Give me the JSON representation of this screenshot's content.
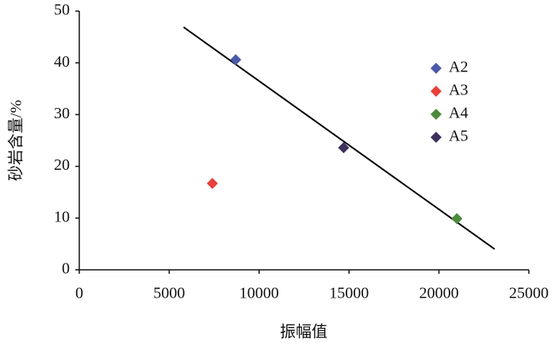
{
  "chart_data": {
    "type": "scatter",
    "x_label": "振幅值",
    "y_label": "砂岩含量/%",
    "xlim": [
      0,
      25000
    ],
    "xticks": [
      0,
      5000,
      10000,
      15000,
      20000,
      25000
    ],
    "ylim": [
      0,
      50
    ],
    "yticks": [
      0,
      10,
      20,
      30,
      40,
      50
    ],
    "series": [
      {
        "name": "A2",
        "color": "#4a5aa8",
        "x": [
          8700
        ],
        "values": [
          40.6
        ]
      },
      {
        "name": "A3",
        "color": "#e8403a",
        "x": [
          7400
        ],
        "values": [
          16.7
        ]
      },
      {
        "name": "A4",
        "color": "#4c8a3c",
        "x": [
          21000
        ],
        "values": [
          9.9
        ]
      },
      {
        "name": "A5",
        "color": "#3e2f5c",
        "x": [
          14700
        ],
        "values": [
          23.6
        ]
      }
    ],
    "trendline": {
      "color": "#000000",
      "x": [
        5800,
        23100
      ],
      "values": [
        46.9,
        4.0
      ]
    },
    "legend": "right"
  }
}
